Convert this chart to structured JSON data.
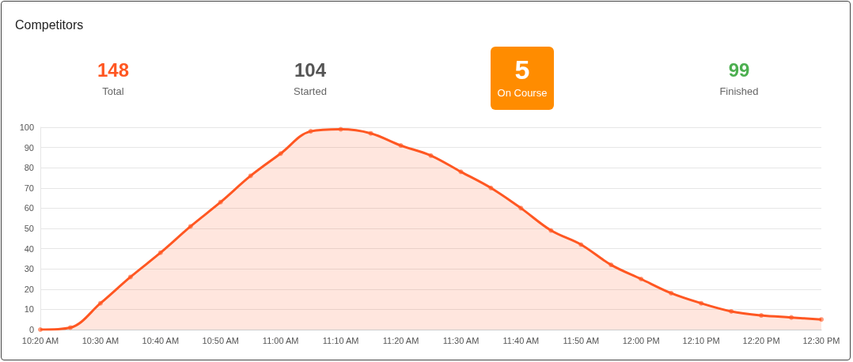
{
  "chart_data": {
    "type": "area",
    "title": "Competitors",
    "annotations": [
      "148",
      "Total",
      "104",
      "Started",
      "5",
      "On Course",
      "99",
      "Finished"
    ],
    "categories": [
      "10:20 AM",
      null,
      "10:30 AM",
      null,
      "10:40 AM",
      null,
      "10:50 AM",
      null,
      "11:00 AM",
      null,
      "11:10 AM",
      null,
      "11:20 AM",
      null,
      "11:30 AM",
      null,
      "11:40 AM",
      null,
      "11:50 AM",
      null,
      "12:00 PM",
      null,
      "12:10 PM",
      null,
      "12:20 PM",
      null,
      "12:30 PM"
    ],
    "series": [
      {
        "color": "#ff5722",
        "values": [
          0,
          1,
          13,
          26,
          38,
          51,
          63,
          76,
          87,
          98,
          99,
          97,
          91,
          86,
          78,
          70,
          60,
          49,
          42,
          32,
          25,
          18,
          13,
          9,
          7,
          6,
          5
        ]
      }
    ],
    "ylim": [
      0,
      100
    ],
    "yticks": [
      0,
      10,
      20,
      30,
      40,
      50,
      60,
      70,
      80,
      90,
      100
    ],
    "grid": "y",
    "marker": "circle",
    "line_style": "solid"
  }
}
